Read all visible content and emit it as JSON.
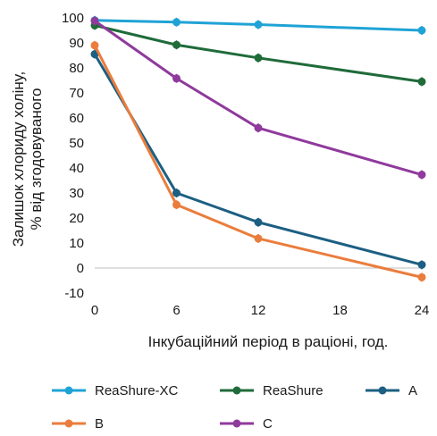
{
  "chart_data": {
    "type": "line",
    "x": [
      0,
      6,
      12,
      24
    ],
    "xticks": [
      0,
      6,
      12,
      18,
      24
    ],
    "yticks": [
      -10,
      0,
      10,
      20,
      30,
      40,
      50,
      60,
      70,
      80,
      90,
      100
    ],
    "xlim": [
      0,
      24
    ],
    "ylim": [
      -10,
      100
    ],
    "xlabel": "Інкубаційний період в раціоні, год.",
    "ylabel_line1": "Залишок хлориду холіну,",
    "ylabel_line2": "% від згодовуваного",
    "grid": false,
    "legend_position": "bottom",
    "series": [
      {
        "name": "ReaShure-XC",
        "color": "#1fa3d6",
        "values": [
          99,
          98.3,
          97.3,
          95
        ]
      },
      {
        "name": "ReaShure",
        "color": "#1f6b3a",
        "values": [
          97,
          89.2,
          84,
          74.5
        ]
      },
      {
        "name": "A",
        "color": "#1c5f82",
        "values": [
          85.5,
          30,
          18.3,
          1.3
        ]
      },
      {
        "name": "B",
        "color": "#ea7d3c",
        "values": [
          89,
          25.3,
          11.8,
          -3.7
        ]
      },
      {
        "name": "C",
        "color": "#8f3a9c",
        "values": [
          98.8,
          75.8,
          56,
          37.3
        ]
      }
    ]
  }
}
